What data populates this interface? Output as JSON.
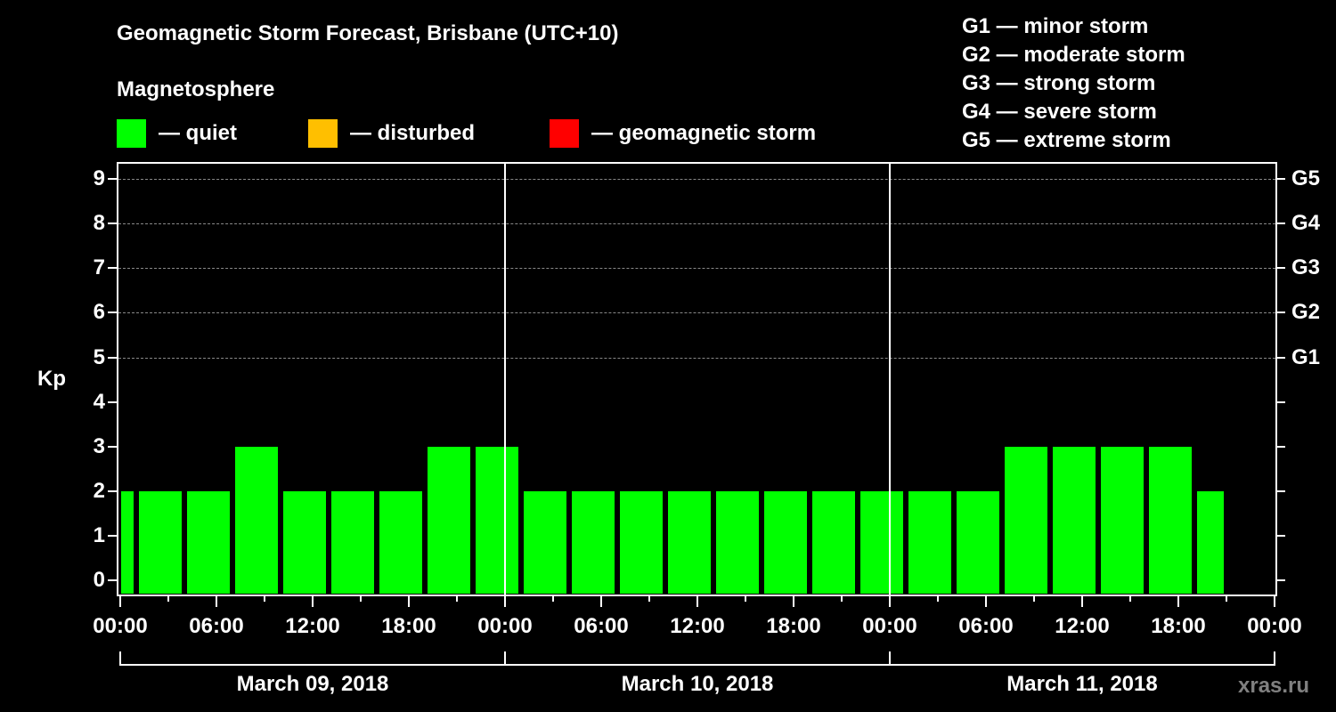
{
  "title": "Geomagnetic Storm Forecast, Brisbane (UTC+10)",
  "subtitle": "Magnetosphere",
  "legend": [
    {
      "label": "— quiet",
      "color": "#00ff00"
    },
    {
      "label": "— disturbed",
      "color": "#ffbf00"
    },
    {
      "label": "— geomagnetic storm",
      "color": "#ff0000"
    }
  ],
  "g_legend": [
    "G1 — minor storm",
    "G2 — moderate storm",
    "G3 — strong storm",
    "G4 — severe storm",
    "G5 — extreme storm"
  ],
  "watermark": "xras.ru",
  "chart_data": {
    "type": "bar",
    "title": "Geomagnetic Storm Forecast, Brisbane (UTC+10)",
    "xlabel": "",
    "ylabel": "Kp",
    "ylim": [
      0,
      9
    ],
    "yticks": [
      "0",
      "1",
      "2",
      "3",
      "4",
      "5",
      "6",
      "7",
      "8",
      "9"
    ],
    "right_axis_ticks": [
      {
        "kp": 5,
        "label": "G1"
      },
      {
        "kp": 6,
        "label": "G2"
      },
      {
        "kp": 7,
        "label": "G3"
      },
      {
        "kp": 8,
        "label": "G4"
      },
      {
        "kp": 9,
        "label": "G5"
      }
    ],
    "xtick_labels": [
      "00:00",
      "06:00",
      "12:00",
      "18:00",
      "00:00",
      "06:00",
      "12:00",
      "18:00",
      "00:00",
      "06:00",
      "12:00",
      "18:00",
      "00:00"
    ],
    "days": [
      "March 09, 2018",
      "March 10, 2018",
      "March 11, 2018"
    ],
    "grid": "dashed horizontal at Kp 5-9",
    "bar_color": "#00ff00",
    "values": [
      2,
      2,
      2,
      3,
      2,
      2,
      2,
      3,
      3,
      2,
      2,
      2,
      2,
      2,
      2,
      2,
      2,
      2,
      2,
      3,
      3,
      3,
      3,
      2
    ]
  }
}
